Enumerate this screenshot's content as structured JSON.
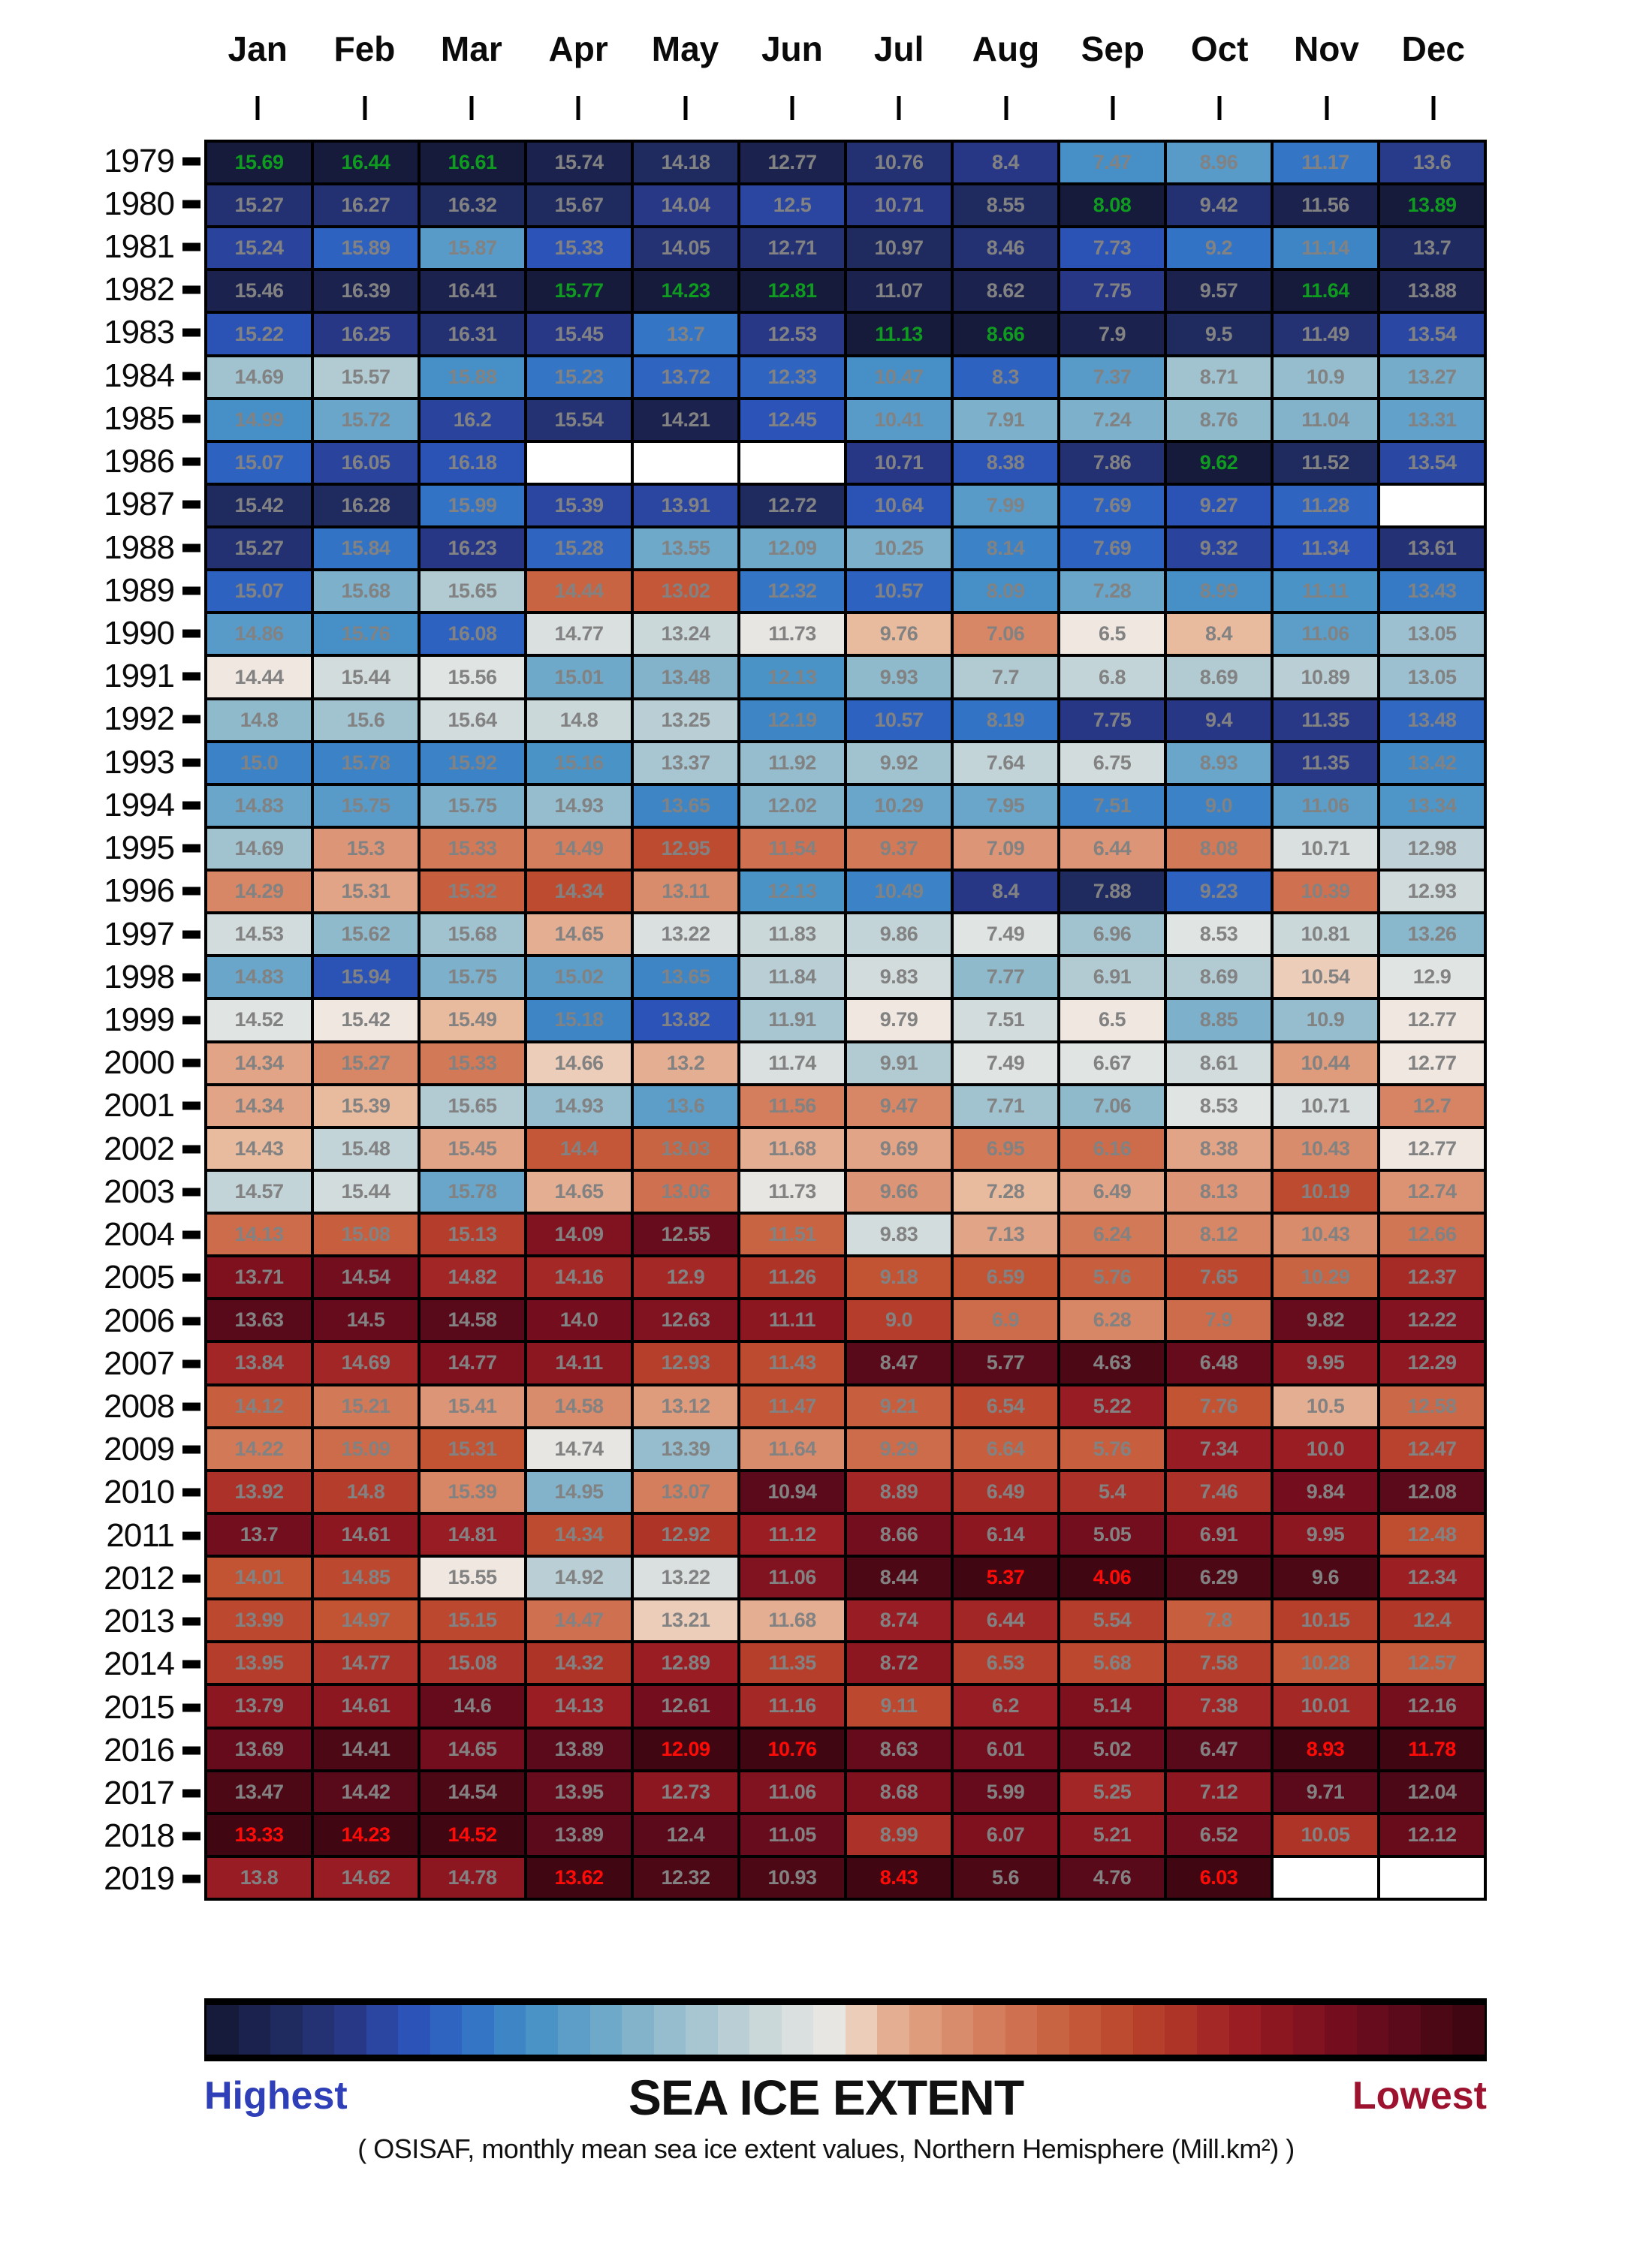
{
  "chart_data": {
    "type": "heatmap",
    "title": "SEA ICE EXTENT",
    "subtitle": "( OSISAF, monthly mean sea ice extent values, Northern Hemisphere (Mill.km²) )",
    "legend": {
      "left": "Highest",
      "right": "Lowest"
    },
    "columns": [
      "Jan",
      "Feb",
      "Mar",
      "Apr",
      "May",
      "Jun",
      "Jul",
      "Aug",
      "Sep",
      "Oct",
      "Nov",
      "Dec"
    ],
    "value_text_colors": {
      "normal": "#828282",
      "record_high": "#0f9b1f",
      "record_low": "#ff0b07"
    },
    "legend_colors": {
      "highest": "#2e3fb7",
      "lowest": "#9d132f"
    },
    "missing_cell_color": "#ffffff",
    "colormap_note": "per-month rank, navy = highest extent, maroon = lowest extent",
    "colormap_stops": [
      [
        0.0,
        "#400713"
      ],
      [
        0.06,
        "#5e0a1b"
      ],
      [
        0.12,
        "#7d101f"
      ],
      [
        0.18,
        "#9a1d23"
      ],
      [
        0.24,
        "#b23829"
      ],
      [
        0.3,
        "#c25333"
      ],
      [
        0.36,
        "#cf7150"
      ],
      [
        0.41,
        "#d98c6c"
      ],
      [
        0.45,
        "#e1a486"
      ],
      [
        0.48,
        "#e9bfa4"
      ],
      [
        0.5,
        "#efe7e0"
      ],
      [
        0.52,
        "#e3e6e3"
      ],
      [
        0.56,
        "#cdd9db"
      ],
      [
        0.6,
        "#b2cbd3"
      ],
      [
        0.65,
        "#8fbacc"
      ],
      [
        0.7,
        "#69a6c9"
      ],
      [
        0.75,
        "#4690c7"
      ],
      [
        0.8,
        "#3273c5"
      ],
      [
        0.84,
        "#2c57be"
      ],
      [
        0.9,
        "#283785"
      ],
      [
        0.95,
        "#1f2a5e"
      ],
      [
        1.0,
        "#161a3b"
      ]
    ],
    "rows": [
      {
        "year": "1979",
        "values": [
          15.69,
          16.44,
          16.61,
          15.74,
          14.18,
          12.77,
          10.76,
          8.4,
          7.47,
          8.96,
          11.17,
          13.6
        ]
      },
      {
        "year": "1980",
        "values": [
          15.27,
          16.27,
          16.32,
          15.67,
          14.04,
          12.5,
          10.71,
          8.55,
          8.08,
          9.42,
          11.56,
          13.89
        ]
      },
      {
        "year": "1981",
        "values": [
          15.24,
          15.89,
          15.87,
          15.33,
          14.05,
          12.71,
          10.97,
          8.46,
          7.73,
          9.2,
          11.14,
          13.7
        ]
      },
      {
        "year": "1982",
        "values": [
          15.46,
          16.39,
          16.41,
          15.77,
          14.23,
          12.81,
          11.07,
          8.62,
          7.75,
          9.57,
          11.64,
          13.88
        ]
      },
      {
        "year": "1983",
        "values": [
          15.22,
          16.25,
          16.31,
          15.45,
          13.7,
          12.53,
          11.13,
          8.66,
          7.9,
          9.5,
          11.49,
          13.54
        ]
      },
      {
        "year": "1984",
        "values": [
          14.69,
          15.57,
          15.88,
          15.23,
          13.72,
          12.33,
          10.47,
          8.3,
          7.37,
          8.71,
          10.9,
          13.27
        ]
      },
      {
        "year": "1985",
        "values": [
          14.99,
          15.72,
          16.2,
          15.54,
          14.21,
          12.45,
          10.41,
          7.91,
          7.24,
          8.76,
          11.04,
          13.31
        ]
      },
      {
        "year": "1986",
        "values": [
          15.07,
          16.05,
          16.18,
          null,
          null,
          null,
          10.71,
          8.38,
          7.86,
          9.62,
          11.52,
          13.54
        ]
      },
      {
        "year": "1987",
        "values": [
          15.42,
          16.28,
          15.99,
          15.39,
          13.91,
          12.72,
          10.64,
          7.99,
          7.69,
          9.27,
          11.28,
          null
        ]
      },
      {
        "year": "1988",
        "values": [
          15.27,
          15.84,
          16.23,
          15.28,
          13.55,
          12.09,
          10.25,
          8.14,
          7.69,
          9.32,
          11.34,
          13.61
        ]
      },
      {
        "year": "1989",
        "values": [
          15.07,
          15.68,
          15.65,
          14.44,
          13.02,
          12.32,
          10.57,
          8.09,
          7.28,
          8.99,
          11.11,
          13.43
        ]
      },
      {
        "year": "1990",
        "values": [
          14.86,
          15.76,
          16.08,
          14.77,
          13.24,
          11.73,
          9.76,
          7.06,
          6.5,
          8.4,
          11.06,
          13.05
        ]
      },
      {
        "year": "1991",
        "values": [
          14.44,
          15.44,
          15.56,
          15.01,
          13.48,
          12.13,
          9.93,
          7.7,
          6.8,
          8.69,
          10.89,
          13.05
        ]
      },
      {
        "year": "1992",
        "values": [
          14.8,
          15.6,
          15.64,
          14.8,
          13.25,
          12.19,
          10.57,
          8.19,
          7.75,
          9.4,
          11.35,
          13.48
        ]
      },
      {
        "year": "1993",
        "values": [
          15.0,
          15.78,
          15.92,
          15.16,
          13.37,
          11.92,
          9.92,
          7.64,
          6.75,
          8.93,
          11.35,
          13.42
        ]
      },
      {
        "year": "1994",
        "values": [
          14.83,
          15.75,
          15.75,
          14.93,
          13.65,
          12.02,
          10.29,
          7.95,
          7.51,
          9.0,
          11.06,
          13.34
        ]
      },
      {
        "year": "1995",
        "values": [
          14.69,
          15.3,
          15.33,
          14.49,
          12.95,
          11.54,
          9.37,
          7.09,
          6.44,
          8.08,
          10.71,
          12.98
        ]
      },
      {
        "year": "1996",
        "values": [
          14.29,
          15.31,
          15.32,
          14.34,
          13.11,
          12.13,
          10.49,
          8.4,
          7.88,
          9.23,
          10.39,
          12.93
        ]
      },
      {
        "year": "1997",
        "values": [
          14.53,
          15.62,
          15.68,
          14.65,
          13.22,
          11.83,
          9.86,
          7.49,
          6.96,
          8.53,
          10.81,
          13.26
        ]
      },
      {
        "year": "1998",
        "values": [
          14.83,
          15.94,
          15.75,
          15.02,
          13.65,
          11.84,
          9.83,
          7.77,
          6.91,
          8.69,
          10.54,
          12.9
        ]
      },
      {
        "year": "1999",
        "values": [
          14.52,
          15.42,
          15.49,
          15.18,
          13.82,
          11.91,
          9.79,
          7.51,
          6.5,
          8.85,
          10.9,
          12.77
        ]
      },
      {
        "year": "2000",
        "values": [
          14.34,
          15.27,
          15.33,
          14.66,
          13.2,
          11.74,
          9.91,
          7.49,
          6.67,
          8.61,
          10.44,
          12.77
        ]
      },
      {
        "year": "2001",
        "values": [
          14.34,
          15.39,
          15.65,
          14.93,
          13.6,
          11.56,
          9.47,
          7.71,
          7.06,
          8.53,
          10.71,
          12.7
        ]
      },
      {
        "year": "2002",
        "values": [
          14.43,
          15.48,
          15.45,
          14.4,
          13.03,
          11.68,
          9.69,
          6.95,
          6.16,
          8.38,
          10.43,
          12.77
        ]
      },
      {
        "year": "2003",
        "values": [
          14.57,
          15.44,
          15.78,
          14.65,
          13.06,
          11.73,
          9.66,
          7.28,
          6.49,
          8.13,
          10.19,
          12.74
        ]
      },
      {
        "year": "2004",
        "values": [
          14.13,
          15.08,
          15.13,
          14.09,
          12.55,
          11.51,
          9.83,
          7.13,
          6.24,
          8.12,
          10.43,
          12.66
        ]
      },
      {
        "year": "2005",
        "values": [
          13.71,
          14.54,
          14.82,
          14.16,
          12.9,
          11.26,
          9.18,
          6.59,
          5.76,
          7.65,
          10.29,
          12.37
        ]
      },
      {
        "year": "2006",
        "values": [
          13.63,
          14.5,
          14.58,
          14.0,
          12.63,
          11.11,
          9.0,
          6.9,
          6.28,
          7.9,
          9.82,
          12.22
        ]
      },
      {
        "year": "2007",
        "values": [
          13.84,
          14.69,
          14.77,
          14.11,
          12.93,
          11.43,
          8.47,
          5.77,
          4.63,
          6.48,
          9.95,
          12.29
        ]
      },
      {
        "year": "2008",
        "values": [
          14.12,
          15.21,
          15.41,
          14.58,
          13.12,
          11.47,
          9.21,
          6.54,
          5.22,
          7.76,
          10.5,
          12.58
        ]
      },
      {
        "year": "2009",
        "values": [
          14.22,
          15.09,
          15.31,
          14.74,
          13.39,
          11.64,
          9.29,
          6.64,
          5.76,
          7.34,
          10.0,
          12.47
        ]
      },
      {
        "year": "2010",
        "values": [
          13.92,
          14.8,
          15.39,
          14.95,
          13.07,
          10.94,
          8.89,
          6.49,
          5.4,
          7.46,
          9.84,
          12.08
        ]
      },
      {
        "year": "2011",
        "values": [
          13.7,
          14.61,
          14.81,
          14.34,
          12.92,
          11.12,
          8.66,
          6.14,
          5.05,
          6.91,
          9.95,
          12.48
        ]
      },
      {
        "year": "2012",
        "values": [
          14.01,
          14.85,
          15.55,
          14.92,
          13.22,
          11.06,
          8.44,
          5.37,
          4.06,
          6.29,
          9.6,
          12.34
        ]
      },
      {
        "year": "2013",
        "values": [
          13.99,
          14.97,
          15.15,
          14.47,
          13.21,
          11.68,
          8.74,
          6.44,
          5.54,
          7.8,
          10.15,
          12.4
        ]
      },
      {
        "year": "2014",
        "values": [
          13.95,
          14.77,
          15.08,
          14.32,
          12.89,
          11.35,
          8.72,
          6.53,
          5.68,
          7.58,
          10.28,
          12.57
        ]
      },
      {
        "year": "2015",
        "values": [
          13.79,
          14.61,
          14.6,
          14.13,
          12.61,
          11.16,
          9.11,
          6.2,
          5.14,
          7.38,
          10.01,
          12.16
        ]
      },
      {
        "year": "2016",
        "values": [
          13.69,
          14.41,
          14.65,
          13.89,
          12.09,
          10.76,
          8.63,
          6.01,
          5.02,
          6.47,
          8.93,
          11.78
        ]
      },
      {
        "year": "2017",
        "values": [
          13.47,
          14.42,
          14.54,
          13.95,
          12.73,
          11.06,
          8.68,
          5.99,
          5.25,
          7.12,
          9.71,
          12.04
        ]
      },
      {
        "year": "2018",
        "values": [
          13.33,
          14.23,
          14.52,
          13.89,
          12.4,
          11.05,
          8.99,
          6.07,
          5.21,
          6.52,
          10.05,
          12.12
        ]
      },
      {
        "year": "2019",
        "values": [
          13.8,
          14.62,
          14.78,
          13.62,
          12.32,
          10.93,
          8.43,
          5.6,
          4.76,
          6.03,
          null,
          null
        ]
      }
    ]
  }
}
